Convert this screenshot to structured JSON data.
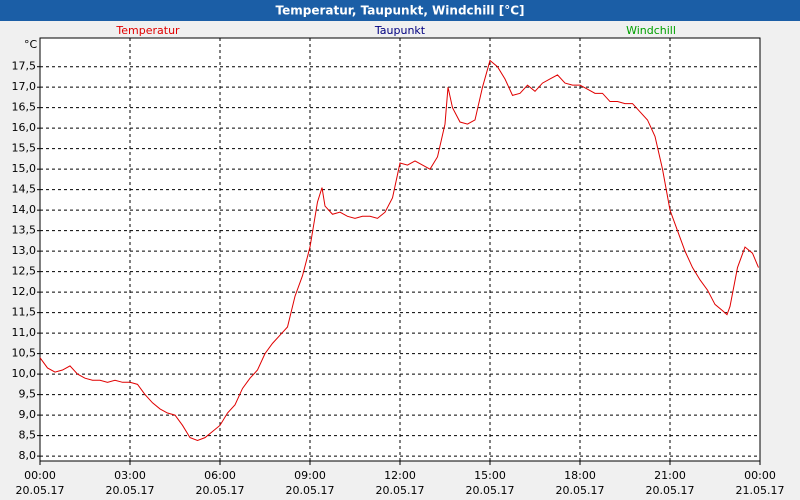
{
  "chart_data": {
    "type": "line",
    "title": "Temperatur, Taupunkt, Windchill [°C]",
    "y_unit": "°C",
    "legend": [
      {
        "name": "Temperatur",
        "color": "#e00000"
      },
      {
        "name": "Taupunkt",
        "color": "#000080"
      },
      {
        "name": "Windchill",
        "color": "#00a000"
      }
    ],
    "x": [
      0,
      0.25,
      0.5,
      0.75,
      1,
      1.25,
      1.5,
      1.75,
      2,
      2.25,
      2.5,
      2.75,
      3,
      3.25,
      3.5,
      3.75,
      4,
      4.25,
      4.5,
      4.75,
      5,
      5.25,
      5.5,
      5.75,
      6,
      6.25,
      6.5,
      6.75,
      7,
      7.25,
      7.5,
      7.75,
      8,
      8.25,
      8.5,
      8.75,
      9,
      9.25,
      9.4,
      9.5,
      9.75,
      10,
      10.25,
      10.5,
      10.75,
      11,
      11.25,
      11.5,
      11.75,
      12,
      12.25,
      12.5,
      12.75,
      13,
      13.25,
      13.5,
      13.6,
      13.75,
      14,
      14.25,
      14.5,
      14.75,
      15,
      15.25,
      15.5,
      15.75,
      16,
      16.25,
      16.5,
      16.75,
      17,
      17.25,
      17.5,
      17.75,
      18,
      18.25,
      18.5,
      18.75,
      19,
      19.25,
      19.5,
      19.75,
      20,
      20.25,
      20.5,
      20.75,
      21,
      21.25,
      21.5,
      21.75,
      22,
      22.25,
      22.5,
      22.75,
      22.9,
      23,
      23.25,
      23.5,
      23.75,
      23.95
    ],
    "series": [
      {
        "name": "Temperatur",
        "color": "#e00000",
        "values": [
          10.4,
          10.15,
          10.05,
          10.1,
          10.2,
          10.0,
          9.9,
          9.85,
          9.85,
          9.8,
          9.85,
          9.8,
          9.8,
          9.75,
          9.5,
          9.3,
          9.15,
          9.05,
          9.0,
          8.75,
          8.45,
          8.38,
          8.45,
          8.6,
          8.75,
          9.05,
          9.25,
          9.65,
          9.9,
          10.1,
          10.5,
          10.75,
          10.95,
          11.15,
          11.9,
          12.4,
          13.1,
          14.2,
          14.55,
          14.1,
          13.9,
          13.95,
          13.85,
          13.8,
          13.85,
          13.85,
          13.8,
          13.95,
          14.3,
          15.15,
          15.1,
          15.2,
          15.1,
          15.0,
          15.3,
          16.1,
          17.0,
          16.5,
          16.15,
          16.1,
          16.2,
          17.0,
          17.65,
          17.5,
          17.2,
          16.8,
          16.85,
          17.05,
          16.9,
          17.1,
          17.2,
          17.3,
          17.1,
          17.05,
          17.05,
          16.95,
          16.85,
          16.85,
          16.65,
          16.65,
          16.6,
          16.6,
          16.4,
          16.2,
          15.8,
          15.0,
          14.0,
          13.5,
          13.0,
          12.6,
          12.3,
          12.05,
          11.7,
          11.55,
          11.45,
          11.65,
          12.6,
          13.1,
          12.95,
          12.6
        ]
      }
    ],
    "xlim": [
      0,
      24
    ],
    "xticks": [
      {
        "value": 0,
        "label": "00:00"
      },
      {
        "value": 3,
        "label": "03:00"
      },
      {
        "value": 6,
        "label": "06:00"
      },
      {
        "value": 9,
        "label": "09:00"
      },
      {
        "value": 12,
        "label": "12:00"
      },
      {
        "value": 15,
        "label": "15:00"
      },
      {
        "value": 18,
        "label": "18:00"
      },
      {
        "value": 21,
        "label": "21:00"
      },
      {
        "value": 24,
        "label": "00:00"
      }
    ],
    "xtick_dates": [
      "20.05.17",
      "20.05.17",
      "20.05.17",
      "20.05.17",
      "20.05.17",
      "20.05.17",
      "20.05.17",
      "20.05.17",
      "21.05.17"
    ],
    "ylim": [
      7.88,
      18.2
    ],
    "yticks": [
      {
        "value": 8,
        "label": "8,0"
      },
      {
        "value": 8.5,
        "label": "8,5"
      },
      {
        "value": 9,
        "label": "9,0"
      },
      {
        "value": 9.5,
        "label": "9,5"
      },
      {
        "value": 10,
        "label": "10,0"
      },
      {
        "value": 10.5,
        "label": "10,5"
      },
      {
        "value": 11,
        "label": "11,0"
      },
      {
        "value": 11.5,
        "label": "11,5"
      },
      {
        "value": 12,
        "label": "12,0"
      },
      {
        "value": 12.5,
        "label": "12,5"
      },
      {
        "value": 13,
        "label": "13,0"
      },
      {
        "value": 13.5,
        "label": "13,5"
      },
      {
        "value": 14,
        "label": "14,0"
      },
      {
        "value": 14.5,
        "label": "14,5"
      },
      {
        "value": 15,
        "label": "15,0"
      },
      {
        "value": 15.5,
        "label": "15,5"
      },
      {
        "value": 16,
        "label": "16,0"
      },
      {
        "value": 16.5,
        "label": "16,5"
      },
      {
        "value": 17,
        "label": "17,0"
      },
      {
        "value": 17.5,
        "label": "17,5"
      }
    ],
    "grid": true
  }
}
